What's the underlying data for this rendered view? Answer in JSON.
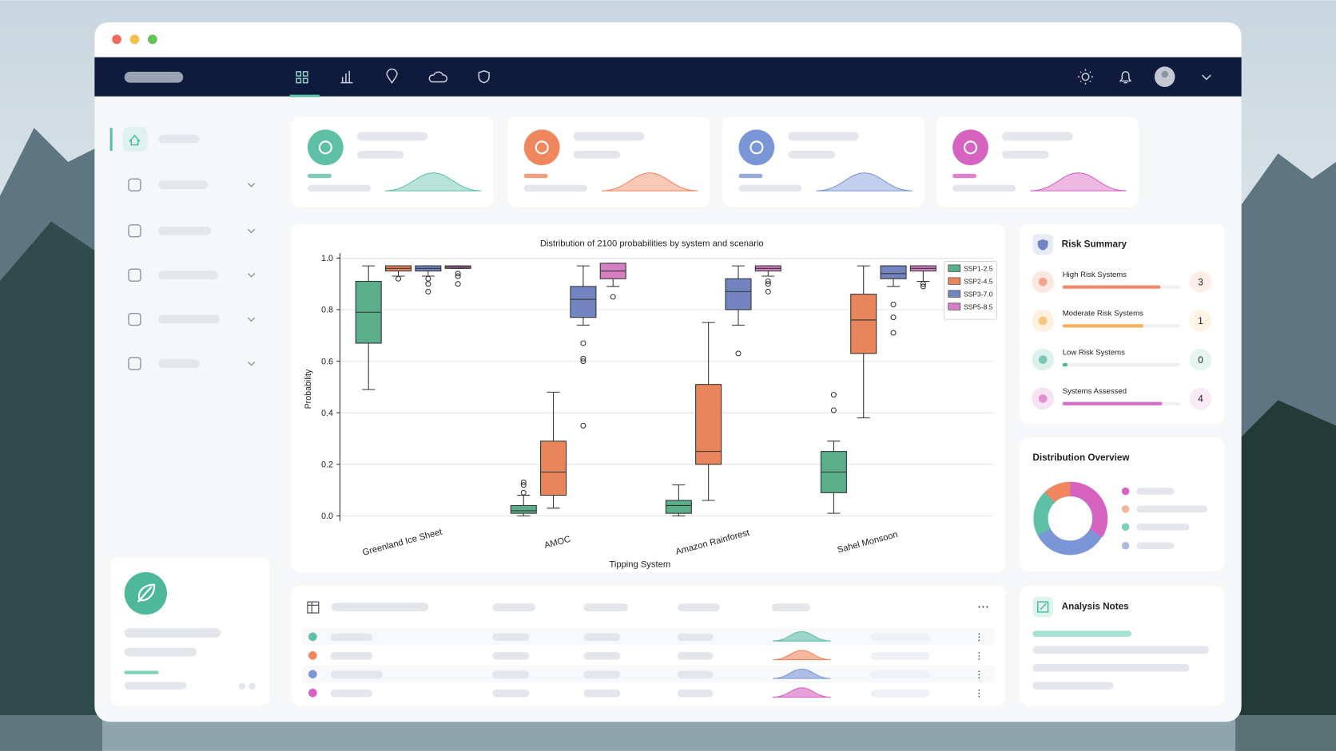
{
  "chart_data": {
    "type": "box",
    "title": "Distribution of 2100 probabilities by system and scenario",
    "x_label": "Tipping System",
    "y_label": "Probability",
    "categories": [
      "Greenland Ice Sheet",
      "AMOC",
      "Amazon Rainforest",
      "Sahel Monsoon"
    ],
    "series": [
      {
        "name": "SSP1-2.5",
        "color": "#5aae8a",
        "values": [
          {
            "min": 0.49,
            "q1": 0.67,
            "median": 0.79,
            "q3": 0.91,
            "max": 0.97
          },
          {
            "min": 0.0,
            "q1": 0.01,
            "median": 0.02,
            "q3": 0.04,
            "max": 0.08,
            "outliers": [
              0.09,
              0.12,
              0.13
            ]
          },
          {
            "min": 0.0,
            "q1": 0.01,
            "median": 0.04,
            "q3": 0.06,
            "max": 0.12
          },
          {
            "min": 0.01,
            "q1": 0.09,
            "median": 0.17,
            "q3": 0.25,
            "max": 0.29,
            "outliers": [
              0.47,
              0.41
            ]
          }
        ]
      },
      {
        "name": "SSP2-4.5",
        "color": "#e8855a",
        "values": [
          {
            "min": 0.93,
            "q1": 0.95,
            "median": 0.96,
            "q3": 0.97,
            "max": 0.97,
            "outliers": [
              0.92
            ]
          },
          {
            "min": 0.03,
            "q1": 0.08,
            "median": 0.17,
            "q3": 0.29,
            "max": 0.48
          },
          {
            "min": 0.06,
            "q1": 0.2,
            "median": 0.25,
            "q3": 0.51,
            "max": 0.75
          },
          {
            "min": 0.38,
            "q1": 0.63,
            "median": 0.76,
            "q3": 0.86,
            "max": 0.97
          }
        ]
      },
      {
        "name": "SSP3-7.0",
        "color": "#7385c0",
        "values": [
          {
            "min": 0.93,
            "q1": 0.95,
            "median": 0.96,
            "q3": 0.97,
            "max": 0.97,
            "outliers": [
              0.92,
              0.9,
              0.87
            ]
          },
          {
            "min": 0.74,
            "q1": 0.77,
            "median": 0.84,
            "q3": 0.89,
            "max": 0.97,
            "outliers": [
              0.67,
              0.61,
              0.6,
              0.35
            ]
          },
          {
            "min": 0.74,
            "q1": 0.8,
            "median": 0.87,
            "q3": 0.92,
            "max": 0.97,
            "outliers": [
              0.63
            ]
          },
          {
            "min": 0.89,
            "q1": 0.92,
            "median": 0.94,
            "q3": 0.97,
            "max": 0.97,
            "outliers": [
              0.82,
              0.77,
              0.71
            ]
          }
        ]
      },
      {
        "name": "SSP5-8.5",
        "color": "#d47ec4",
        "values": [
          {
            "min": 0.96,
            "q1": 0.96,
            "median": 0.965,
            "q3": 0.97,
            "max": 0.97,
            "outliers": [
              0.94,
              0.93,
              0.9
            ]
          },
          {
            "min": 0.89,
            "q1": 0.92,
            "median": 0.95,
            "q3": 0.98,
            "max": 0.98,
            "outliers": [
              0.85
            ]
          },
          {
            "min": 0.93,
            "q1": 0.95,
            "median": 0.96,
            "q3": 0.97,
            "max": 0.97,
            "outliers": [
              0.91,
              0.9,
              0.87
            ]
          },
          {
            "min": 0.91,
            "q1": 0.95,
            "median": 0.96,
            "q3": 0.97,
            "max": 0.97,
            "outliers": [
              0.9,
              0.89
            ]
          }
        ]
      }
    ],
    "ylim": [
      -0.02,
      1.02
    ],
    "yticks": [
      {
        "value": 0,
        "label": "0.0"
      },
      {
        "value": 0.2,
        "label": "0.2"
      },
      {
        "value": 0.4,
        "label": "0.4"
      },
      {
        "value": 0.6,
        "label": "0.6"
      },
      {
        "value": 0.8,
        "label": "0.8"
      },
      {
        "value": 1,
        "label": "1.0"
      }
    ],
    "grid": true,
    "legend": "upper right"
  },
  "risk_summary": {
    "title": "Risk Summary",
    "items": [
      {
        "label": "High Risk Systems",
        "count": 3
      },
      {
        "label": "Moderate Risk Systems",
        "count": 1
      },
      {
        "label": "Low Risk Systems",
        "count": 0
      },
      {
        "label": "Systems Assessed",
        "count": 4
      }
    ]
  },
  "distribution_overview": {
    "title": "Distribution Overview"
  },
  "analysis_notes": {
    "title": "Analysis Notes"
  }
}
